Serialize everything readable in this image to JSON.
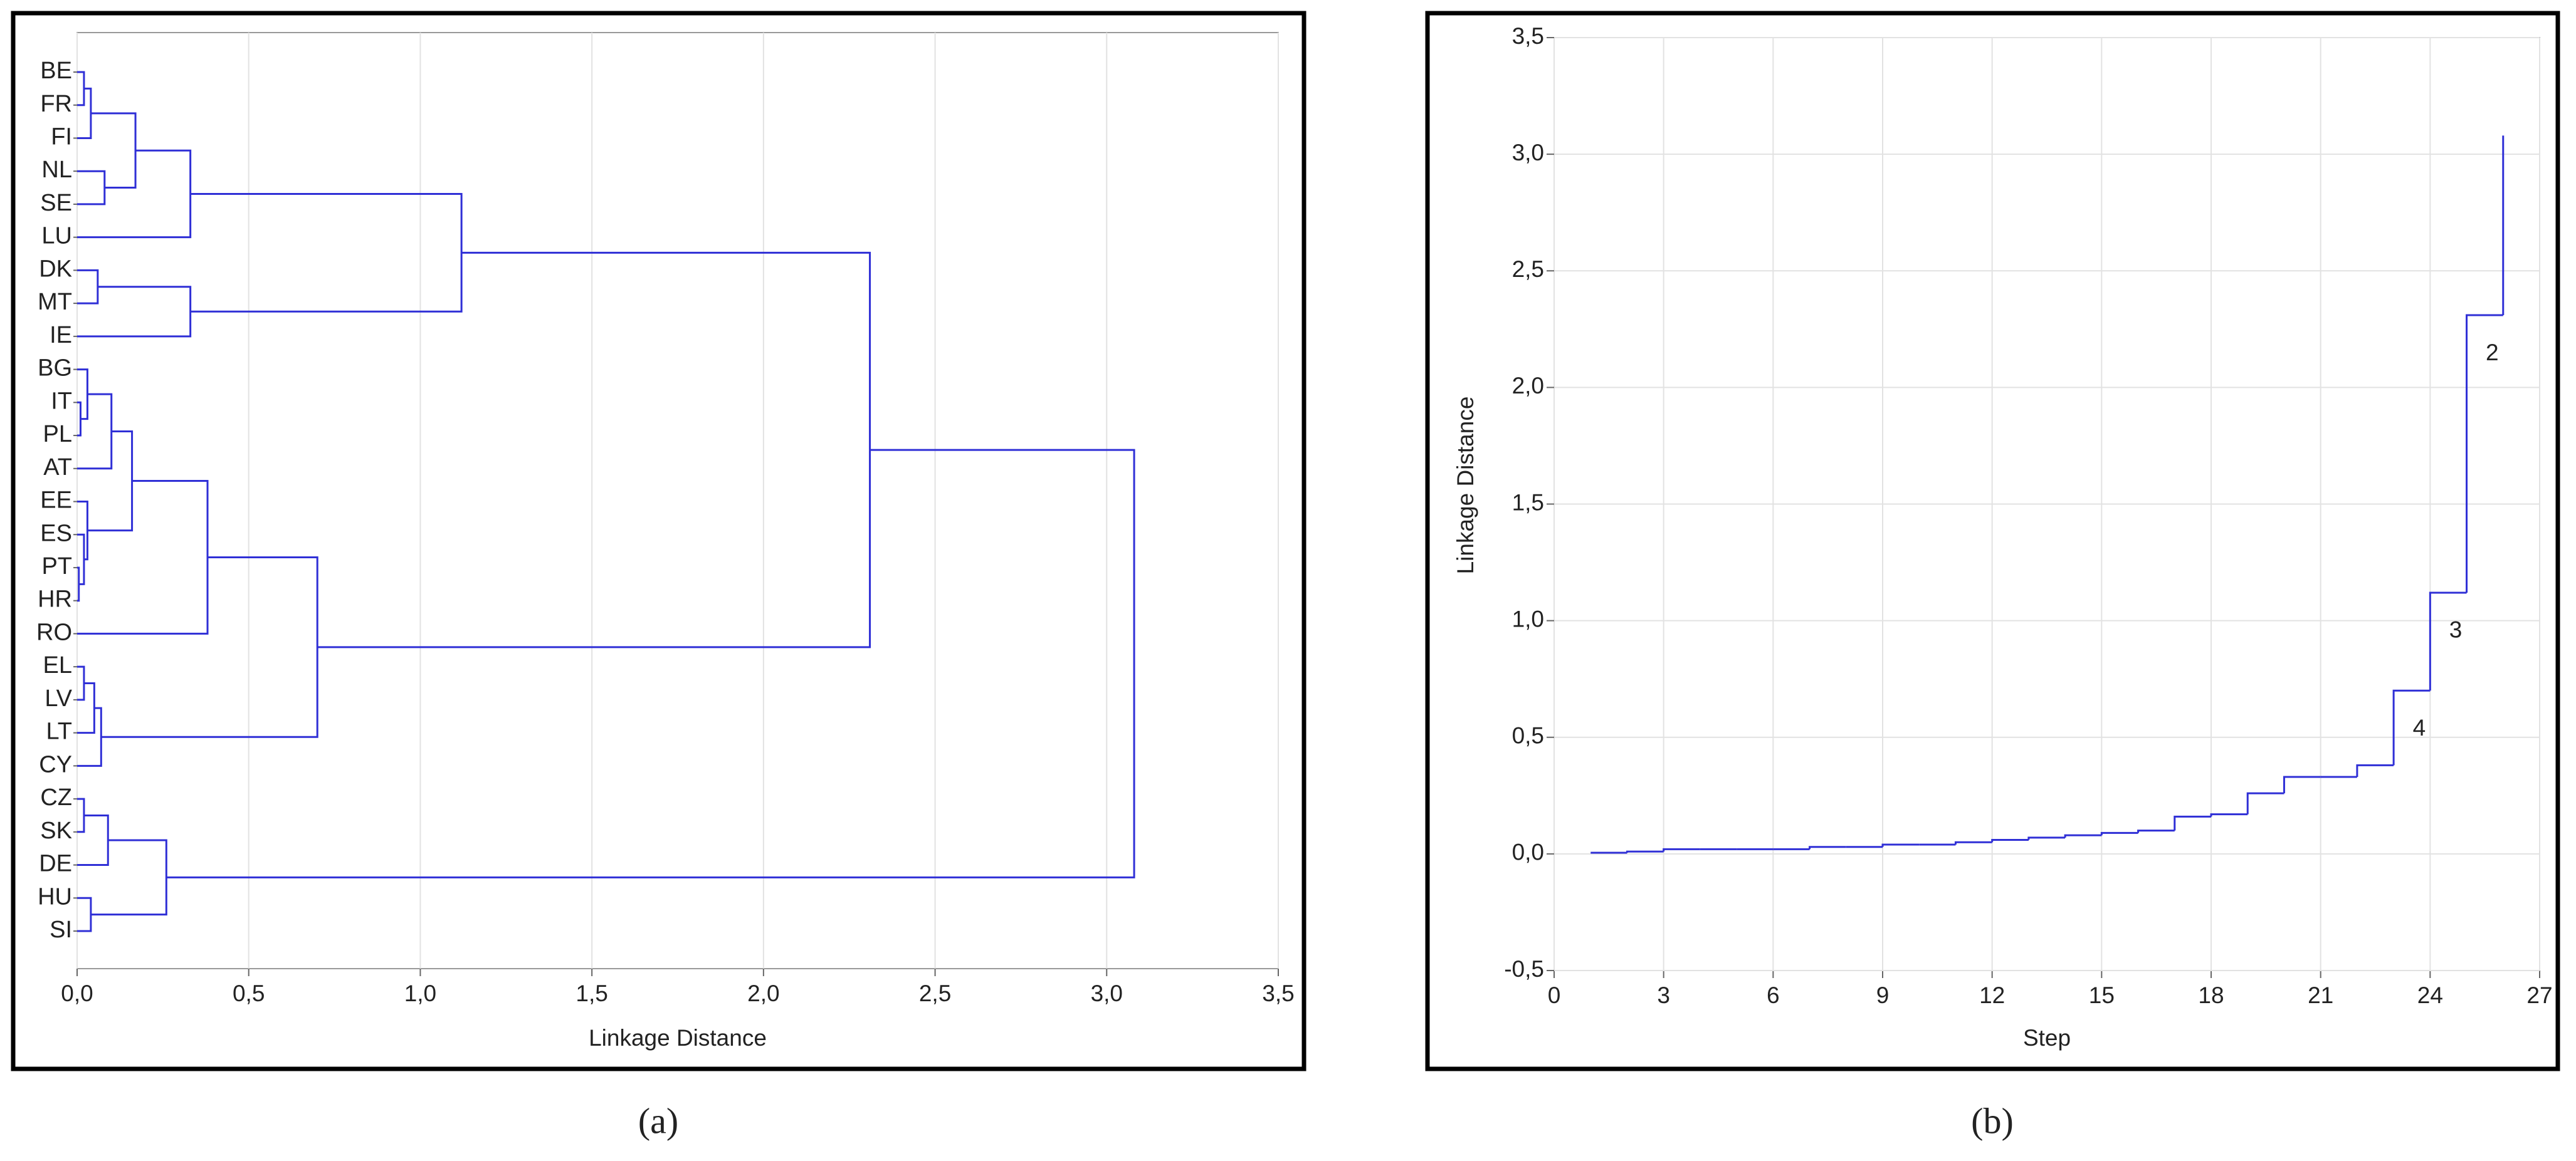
{
  "chart_data": [
    {
      "type": "dendrogram",
      "xlabel": "Linkage Distance",
      "panel_label": "(a)",
      "color": "#2f2fd6",
      "grid": true,
      "leaves": [
        "BE",
        "FR",
        "FI",
        "NL",
        "SE",
        "LU",
        "DK",
        "MT",
        "IE",
        "BG",
        "IT",
        "PL",
        "AT",
        "EE",
        "ES",
        "PT",
        "HR",
        "RO",
        "EL",
        "LV",
        "LT",
        "CY",
        "CZ",
        "SK",
        "DE",
        "HU",
        "SI"
      ],
      "merges": [
        {
          "left": 0,
          "right": 1,
          "height": 0.02
        },
        {
          "left": 27,
          "right": 2,
          "height": 0.04
        },
        {
          "left": 3,
          "right": 4,
          "height": 0.08
        },
        {
          "left": 28,
          "right": 29,
          "height": 0.17
        },
        {
          "left": 30,
          "right": 5,
          "height": 0.33
        },
        {
          "left": 6,
          "right": 7,
          "height": 0.06
        },
        {
          "left": 32,
          "right": 8,
          "height": 0.33
        },
        {
          "left": 31,
          "right": 33,
          "height": 1.12
        },
        {
          "left": 10,
          "right": 11,
          "height": 0.01
        },
        {
          "left": 9,
          "right": 35,
          "height": 0.03
        },
        {
          "left": 36,
          "right": 12,
          "height": 0.1
        },
        {
          "left": 15,
          "right": 16,
          "height": 0.005
        },
        {
          "left": 14,
          "right": 38,
          "height": 0.02
        },
        {
          "left": 13,
          "right": 39,
          "height": 0.03
        },
        {
          "left": 37,
          "right": 40,
          "height": 0.16
        },
        {
          "left": 41,
          "right": 17,
          "height": 0.38
        },
        {
          "left": 18,
          "right": 19,
          "height": 0.02
        },
        {
          "left": 43,
          "right": 20,
          "height": 0.05
        },
        {
          "left": 44,
          "right": 21,
          "height": 0.07
        },
        {
          "left": 42,
          "right": 45,
          "height": 0.7
        },
        {
          "left": 34,
          "right": 46,
          "height": 2.31
        },
        {
          "left": 22,
          "right": 23,
          "height": 0.02
        },
        {
          "left": 48,
          "right": 24,
          "height": 0.09
        },
        {
          "left": 25,
          "right": 26,
          "height": 0.04
        },
        {
          "left": 49,
          "right": 50,
          "height": 0.26
        },
        {
          "left": 47,
          "right": 51,
          "height": 3.08
        }
      ],
      "xlim": [
        0,
        3.5
      ],
      "xticks": [
        {
          "value": 0,
          "label": "0,0"
        },
        {
          "value": 0.5,
          "label": "0,5"
        },
        {
          "value": 1,
          "label": "1,0"
        },
        {
          "value": 1.5,
          "label": "1,5"
        },
        {
          "value": 2,
          "label": "2,0"
        },
        {
          "value": 2.5,
          "label": "2,5"
        },
        {
          "value": 3,
          "label": "3,0"
        },
        {
          "value": 3.5,
          "label": "3,5"
        }
      ]
    },
    {
      "type": "step",
      "xlabel": "Step",
      "ylabel": "Linkage Distance",
      "panel_label": "(b)",
      "color": "#2f2fd6",
      "grid": true,
      "x": [
        1,
        2,
        3,
        4,
        5,
        6,
        7,
        8,
        9,
        10,
        11,
        12,
        13,
        14,
        15,
        16,
        17,
        18,
        19,
        20,
        21,
        22,
        23,
        24,
        25,
        26
      ],
      "values": [
        0.005,
        0.01,
        0.02,
        0.02,
        0.02,
        0.02,
        0.03,
        0.03,
        0.04,
        0.04,
        0.05,
        0.06,
        0.07,
        0.08,
        0.09,
        0.1,
        0.16,
        0.17,
        0.26,
        0.33,
        0.33,
        0.38,
        0.7,
        1.12,
        2.31,
        3.08
      ],
      "xlim": [
        0,
        27
      ],
      "xticks": [
        0,
        3,
        6,
        9,
        12,
        15,
        18,
        21,
        24,
        27
      ],
      "ylim": [
        -0.5,
        3.5
      ],
      "yticks": [
        {
          "value": -0.5,
          "label": "-0,5"
        },
        {
          "value": 0,
          "label": "0,0"
        },
        {
          "value": 0.5,
          "label": "0,5"
        },
        {
          "value": 1,
          "label": "1,0"
        },
        {
          "value": 1.5,
          "label": "1,5"
        },
        {
          "value": 2,
          "label": "2,0"
        },
        {
          "value": 2.5,
          "label": "2,5"
        },
        {
          "value": 3,
          "label": "3,0"
        },
        {
          "value": 3.5,
          "label": "3,5"
        }
      ],
      "annotations": [
        {
          "text": "2",
          "step": 25
        },
        {
          "text": "3",
          "step": 24
        },
        {
          "text": "4",
          "step": 23
        }
      ]
    }
  ]
}
